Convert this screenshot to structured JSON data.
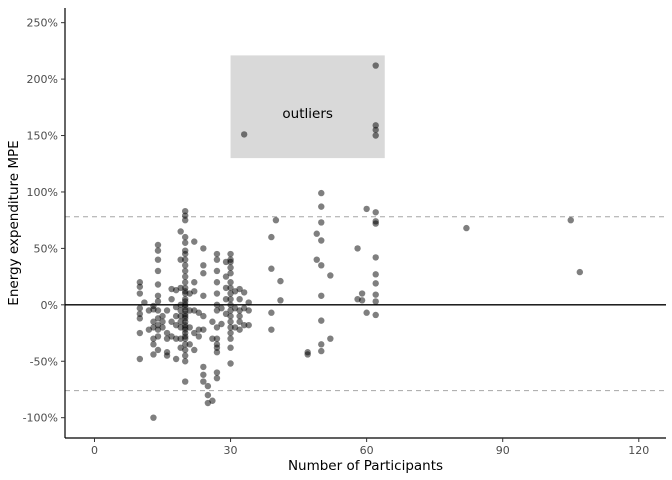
{
  "chart_data": {
    "type": "scatter",
    "title": "",
    "xlabel": "Number of Participants",
    "ylabel": "Energy expenditure MPE",
    "xlim": [
      -6.5,
      126
    ],
    "ylim": [
      -118,
      263
    ],
    "x_ticks": [
      0,
      30,
      60,
      90,
      120
    ],
    "x_tick_labels": [
      "0",
      "30",
      "60",
      "90",
      "120"
    ],
    "y_ticks": [
      -100,
      -50,
      0,
      50,
      100,
      150,
      200,
      250
    ],
    "y_tick_labels": [
      "-100%",
      "-50%",
      "0%",
      "50%",
      "100%",
      "150%",
      "200%",
      "250%"
    ],
    "grid": false,
    "hlines": [
      {
        "y": 0,
        "style": "solid",
        "color": "#000000"
      },
      {
        "y": 78,
        "style": "dashed",
        "color": "#a6a6a6"
      },
      {
        "y": -76,
        "style": "dashed",
        "color": "#a6a6a6"
      }
    ],
    "annotation_rect": {
      "x0": 30,
      "x1": 64,
      "y0": 130,
      "y1": 221,
      "fill": "#d9d9d9"
    },
    "annotation_text": {
      "x": 47,
      "y": 170,
      "label": "outliers"
    },
    "point_color": "#000000",
    "point_opacity": 0.5,
    "points": [
      [
        10,
        20
      ],
      [
        10,
        16
      ],
      [
        10,
        10
      ],
      [
        10,
        -3
      ],
      [
        10,
        -8
      ],
      [
        10,
        -12
      ],
      [
        10,
        -25
      ],
      [
        10,
        -48
      ],
      [
        11,
        2
      ],
      [
        12,
        -5
      ],
      [
        12,
        -22
      ],
      [
        13,
        -100
      ],
      [
        13,
        -1
      ],
      [
        13,
        -4
      ],
      [
        13,
        -15
      ],
      [
        13,
        -20
      ],
      [
        13,
        -30
      ],
      [
        13,
        -35
      ],
      [
        13,
        -44
      ],
      [
        14,
        53
      ],
      [
        14,
        48
      ],
      [
        14,
        40
      ],
      [
        14,
        30
      ],
      [
        14,
        18
      ],
      [
        14,
        8
      ],
      [
        14,
        3
      ],
      [
        14,
        -5
      ],
      [
        14,
        -12
      ],
      [
        14,
        -18
      ],
      [
        14,
        -22
      ],
      [
        14,
        -28
      ],
      [
        14,
        -40
      ],
      [
        15,
        -10
      ],
      [
        15,
        -15
      ],
      [
        15,
        -20
      ],
      [
        16,
        -5
      ],
      [
        16,
        -25
      ],
      [
        16,
        -30
      ],
      [
        16,
        -42
      ],
      [
        16,
        -45
      ],
      [
        17,
        14
      ],
      [
        17,
        5
      ],
      [
        17,
        -15
      ],
      [
        17,
        -28
      ],
      [
        18,
        13
      ],
      [
        18,
        -2
      ],
      [
        18,
        -10
      ],
      [
        18,
        -18
      ],
      [
        18,
        -30
      ],
      [
        18,
        -48
      ],
      [
        19,
        65
      ],
      [
        19,
        40
      ],
      [
        19,
        15
      ],
      [
        19,
        0
      ],
      [
        19,
        -5
      ],
      [
        19,
        -10
      ],
      [
        19,
        -15
      ],
      [
        19,
        -20
      ],
      [
        19,
        -30
      ],
      [
        19,
        -38
      ],
      [
        20,
        83
      ],
      [
        20,
        79
      ],
      [
        20,
        75
      ],
      [
        20,
        60
      ],
      [
        20,
        55
      ],
      [
        20,
        48
      ],
      [
        20,
        45
      ],
      [
        20,
        40
      ],
      [
        20,
        35
      ],
      [
        20,
        30
      ],
      [
        20,
        25
      ],
      [
        20,
        20
      ],
      [
        20,
        15
      ],
      [
        20,
        12
      ],
      [
        20,
        10
      ],
      [
        20,
        5
      ],
      [
        20,
        3
      ],
      [
        20,
        0
      ],
      [
        20,
        -2
      ],
      [
        20,
        -5
      ],
      [
        20,
        -8
      ],
      [
        20,
        -10
      ],
      [
        20,
        -12
      ],
      [
        20,
        -15
      ],
      [
        20,
        -18
      ],
      [
        20,
        -20
      ],
      [
        20,
        -22
      ],
      [
        20,
        -25
      ],
      [
        20,
        -28
      ],
      [
        20,
        -30
      ],
      [
        20,
        -35
      ],
      [
        20,
        -40
      ],
      [
        20,
        -45
      ],
      [
        20,
        -50
      ],
      [
        20,
        -68
      ],
      [
        21,
        10
      ],
      [
        21,
        -5
      ],
      [
        21,
        -20
      ],
      [
        21,
        -35
      ],
      [
        22,
        56
      ],
      [
        22,
        20
      ],
      [
        22,
        12
      ],
      [
        22,
        -5
      ],
      [
        22,
        -25
      ],
      [
        22,
        -40
      ],
      [
        23,
        -7
      ],
      [
        23,
        -22
      ],
      [
        23,
        -28
      ],
      [
        24,
        50
      ],
      [
        24,
        35
      ],
      [
        24,
        28
      ],
      [
        24,
        8
      ],
      [
        24,
        -10
      ],
      [
        24,
        -22
      ],
      [
        24,
        -55
      ],
      [
        24,
        -62
      ],
      [
        24,
        -68
      ],
      [
        25,
        -72
      ],
      [
        25,
        -80
      ],
      [
        25,
        -87
      ],
      [
        26,
        -85
      ],
      [
        26,
        -15
      ],
      [
        26,
        -30
      ],
      [
        27,
        45
      ],
      [
        27,
        40
      ],
      [
        27,
        30
      ],
      [
        27,
        20
      ],
      [
        27,
        10
      ],
      [
        27,
        0
      ],
      [
        27,
        -5
      ],
      [
        27,
        -20
      ],
      [
        27,
        -30
      ],
      [
        27,
        -35
      ],
      [
        27,
        -38
      ],
      [
        27,
        -42
      ],
      [
        27,
        -60
      ],
      [
        27,
        -65
      ],
      [
        28,
        -3
      ],
      [
        28,
        -17
      ],
      [
        29,
        38
      ],
      [
        29,
        25
      ],
      [
        29,
        15
      ],
      [
        29,
        5
      ],
      [
        29,
        -8
      ],
      [
        30,
        45
      ],
      [
        30,
        40
      ],
      [
        30,
        38
      ],
      [
        30,
        33
      ],
      [
        30,
        28
      ],
      [
        30,
        20
      ],
      [
        30,
        15
      ],
      [
        30,
        10
      ],
      [
        30,
        5
      ],
      [
        30,
        0
      ],
      [
        30,
        -5
      ],
      [
        30,
        -10
      ],
      [
        30,
        -15
      ],
      [
        30,
        -20
      ],
      [
        30,
        -25
      ],
      [
        30,
        -30
      ],
      [
        30,
        -38
      ],
      [
        30,
        -52
      ],
      [
        31,
        12
      ],
      [
        31,
        -3
      ],
      [
        31,
        -20
      ],
      [
        32,
        14
      ],
      [
        32,
        5
      ],
      [
        32,
        -5
      ],
      [
        32,
        -10
      ],
      [
        32,
        -15
      ],
      [
        32,
        -22
      ],
      [
        33,
        11
      ],
      [
        33,
        -3
      ],
      [
        33,
        -18
      ],
      [
        34,
        2
      ],
      [
        34,
        -5
      ],
      [
        34,
        -18
      ],
      [
        33,
        151
      ],
      [
        39,
        60
      ],
      [
        39,
        32
      ],
      [
        39,
        -22
      ],
      [
        39,
        -7
      ],
      [
        40,
        75
      ],
      [
        41,
        21
      ],
      [
        41,
        4
      ],
      [
        47,
        -42
      ],
      [
        47,
        -44
      ],
      [
        49,
        40
      ],
      [
        49,
        63
      ],
      [
        50,
        99
      ],
      [
        50,
        87
      ],
      [
        50,
        73
      ],
      [
        50,
        57
      ],
      [
        50,
        35
      ],
      [
        50,
        8
      ],
      [
        50,
        -14
      ],
      [
        50,
        -35
      ],
      [
        50,
        -41
      ],
      [
        52,
        26
      ],
      [
        52,
        -30
      ],
      [
        60,
        85
      ],
      [
        58,
        50
      ],
      [
        58,
        5
      ],
      [
        59,
        4
      ],
      [
        60,
        -7
      ],
      [
        59,
        10
      ],
      [
        62,
        212
      ],
      [
        62,
        159
      ],
      [
        62,
        155
      ],
      [
        62,
        150
      ],
      [
        62,
        82
      ],
      [
        62,
        74
      ],
      [
        62,
        72
      ],
      [
        62,
        42
      ],
      [
        62,
        27
      ],
      [
        62,
        19
      ],
      [
        62,
        9
      ],
      [
        62,
        3
      ],
      [
        62,
        -9
      ],
      [
        82,
        68
      ],
      [
        105,
        75
      ],
      [
        107,
        29
      ]
    ]
  }
}
